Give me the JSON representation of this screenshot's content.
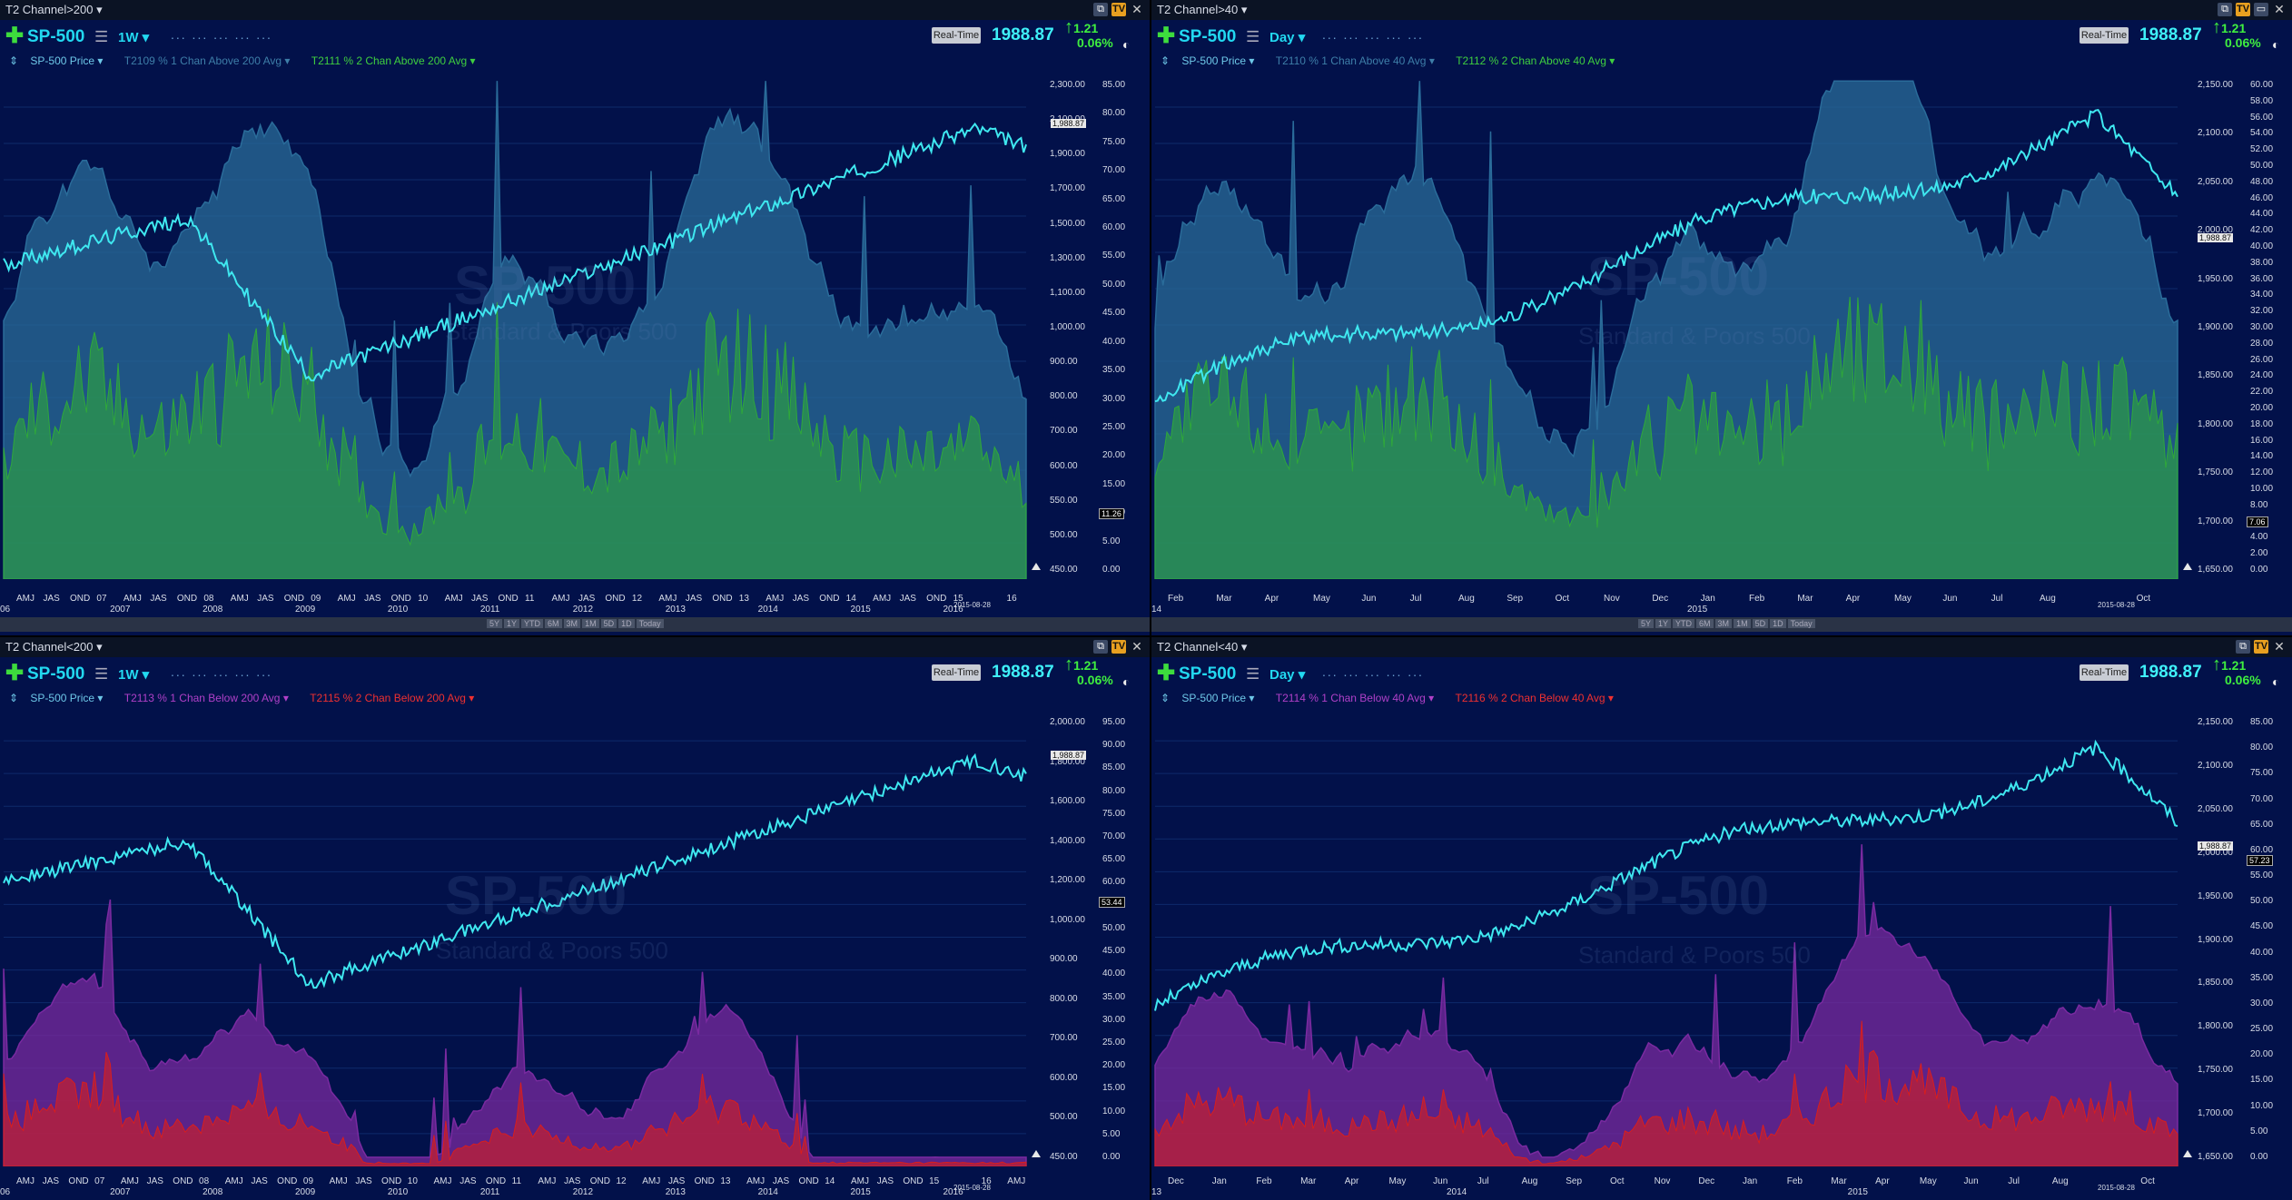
{
  "panes": [
    {
      "title": "T2 Channel>200",
      "symbol": "SP-500",
      "interval": "1W",
      "realtime": "Real-Time",
      "price": "1988.87",
      "change": "1.21",
      "change_pct": "0.06%",
      "legend": [
        {
          "label": "SP-500 Price",
          "color": "#6ec8e8"
        },
        {
          "label": "T2109 % 1 Chan Above 200 Avg",
          "color": "#3e7ea8"
        },
        {
          "label": "T2111 % 2 Chan Above 200 Avg",
          "color": "#3fcf3f"
        }
      ],
      "price_ticks": [
        "2,300.00",
        "2,100.00",
        "1,900.00",
        "1,700.00",
        "1,500.00",
        "1,300.00",
        "1,100.00",
        "1,000.00",
        "900.00",
        "800.00",
        "700.00",
        "600.00",
        "550.00",
        "500.00",
        "450.00"
      ],
      "pct_ticks": [
        "85.00",
        "80.00",
        "75.00",
        "70.00",
        "65.00",
        "60.00",
        "55.00",
        "50.00",
        "45.00",
        "40.00",
        "35.00",
        "30.00",
        "25.00",
        "20.00",
        "15.00",
        "10.00",
        "5.00",
        "0.00"
      ],
      "last_price": "1,988.87",
      "last_value": "11.26",
      "x_months": [
        "AMJ",
        "JAS",
        "OND",
        "07",
        "AMJ",
        "JAS",
        "OND",
        "08",
        "AMJ",
        "JAS",
        "OND",
        "09",
        "AMJ",
        "JAS",
        "OND",
        "10",
        "AMJ",
        "JAS",
        "OND",
        "11",
        "AMJ",
        "JAS",
        "OND",
        "12",
        "AMJ",
        "JAS",
        "OND",
        "13",
        "AMJ",
        "JAS",
        "OND",
        "14",
        "AMJ",
        "JAS",
        "OND",
        "15",
        "",
        "16"
      ],
      "x_years": [
        "2007",
        "2008",
        "2009",
        "2010",
        "2011",
        "2012",
        "2013",
        "2014",
        "2015",
        "2016"
      ],
      "x_start": "06",
      "date_label": "2015-08-28",
      "zoom_buttons": [
        "5Y",
        "1Y",
        "YTD",
        "6M",
        "3M",
        "1M",
        "5D",
        "1D",
        "Today"
      ]
    },
    {
      "title": "T2 Channel>40",
      "symbol": "SP-500",
      "interval": "Day",
      "realtime": "Real-Time",
      "price": "1988.87",
      "change": "1.21",
      "change_pct": "0.06%",
      "legend": [
        {
          "label": "SP-500 Price",
          "color": "#6ec8e8"
        },
        {
          "label": "T2110 % 1 Chan Above 40 Avg",
          "color": "#3e7ea8"
        },
        {
          "label": "T2112 % 2 Chan Above 40 Avg",
          "color": "#3fcf3f"
        }
      ],
      "price_ticks": [
        "2,150.00",
        "2,100.00",
        "2,050.00",
        "2,000.00",
        "1,950.00",
        "1,900.00",
        "1,850.00",
        "1,800.00",
        "1,750.00",
        "1,700.00",
        "1,650.00"
      ],
      "pct_ticks": [
        "60.00",
        "58.00",
        "56.00",
        "54.00",
        "52.00",
        "50.00",
        "48.00",
        "46.00",
        "44.00",
        "42.00",
        "40.00",
        "38.00",
        "36.00",
        "34.00",
        "32.00",
        "30.00",
        "28.00",
        "26.00",
        "24.00",
        "22.00",
        "20.00",
        "18.00",
        "16.00",
        "14.00",
        "12.00",
        "10.00",
        "8.00",
        "6.00",
        "4.00",
        "2.00",
        "0.00"
      ],
      "last_price": "1,988.87",
      "last_value": "7.06",
      "x_months": [
        "Feb",
        "Mar",
        "Apr",
        "May",
        "Jun",
        "Jul",
        "Aug",
        "Sep",
        "Oct",
        "Nov",
        "Dec",
        "Jan",
        "Feb",
        "Mar",
        "Apr",
        "May",
        "Jun",
        "Jul",
        "Aug",
        "",
        "Oct"
      ],
      "x_years": [
        "2015"
      ],
      "x_start": "14",
      "date_label": "2015-08-28",
      "zoom_buttons": [
        "5Y",
        "1Y",
        "YTD",
        "6M",
        "3M",
        "1M",
        "5D",
        "1D",
        "Today"
      ]
    },
    {
      "title": "T2 Channel<200",
      "symbol": "SP-500",
      "interval": "1W",
      "realtime": "Real-Time",
      "price": "1988.87",
      "change": "1.21",
      "change_pct": "0.06%",
      "legend": [
        {
          "label": "SP-500 Price",
          "color": "#6ec8e8"
        },
        {
          "label": "T2113 % 1 Chan Below 200 Avg",
          "color": "#b040c8"
        },
        {
          "label": "T2115 % 2 Chan Below 200 Avg",
          "color": "#f03030"
        }
      ],
      "price_ticks": [
        "2,000.00",
        "1,800.00",
        "1,600.00",
        "1,400.00",
        "1,200.00",
        "1,000.00",
        "900.00",
        "800.00",
        "700.00",
        "600.00",
        "500.00",
        "450.00"
      ],
      "pct_ticks": [
        "95.00",
        "90.00",
        "85.00",
        "80.00",
        "75.00",
        "70.00",
        "65.00",
        "60.00",
        "55.00",
        "50.00",
        "45.00",
        "40.00",
        "35.00",
        "30.00",
        "25.00",
        "20.00",
        "15.00",
        "10.00",
        "5.00",
        "0.00"
      ],
      "last_price": "1,988.87",
      "last_value": "53.44",
      "x_months": [
        "AMJ",
        "JAS",
        "OND",
        "07",
        "AMJ",
        "JAS",
        "OND",
        "08",
        "AMJ",
        "JAS",
        "OND",
        "09",
        "AMJ",
        "JAS",
        "OND",
        "10",
        "AMJ",
        "JAS",
        "OND",
        "11",
        "AMJ",
        "JAS",
        "OND",
        "12",
        "AMJ",
        "JAS",
        "OND",
        "13",
        "AMJ",
        "JAS",
        "OND",
        "14",
        "AMJ",
        "JAS",
        "OND",
        "15",
        "",
        "16",
        "AMJ"
      ],
      "x_years": [
        "2007",
        "2008",
        "2009",
        "2010",
        "2011",
        "2012",
        "2013",
        "2014",
        "2015",
        "2016"
      ],
      "x_start": "06",
      "date_label": "2015-08-28"
    },
    {
      "title": "T2 Channel<40",
      "symbol": "SP-500",
      "interval": "Day",
      "realtime": "Real-Time",
      "price": "1988.87",
      "change": "1.21",
      "change_pct": "0.06%",
      "legend": [
        {
          "label": "SP-500 Price",
          "color": "#6ec8e8"
        },
        {
          "label": "T2114 % 1 Chan Below 40 Avg",
          "color": "#b040c8"
        },
        {
          "label": "T2116 % 2 Chan Below 40 Avg",
          "color": "#f03030"
        }
      ],
      "price_ticks": [
        "2,150.00",
        "2,100.00",
        "2,050.00",
        "2,000.00",
        "1,950.00",
        "1,900.00",
        "1,850.00",
        "1,800.00",
        "1,750.00",
        "1,700.00",
        "1,650.00"
      ],
      "pct_ticks": [
        "85.00",
        "80.00",
        "75.00",
        "70.00",
        "65.00",
        "60.00",
        "55.00",
        "50.00",
        "45.00",
        "40.00",
        "35.00",
        "30.00",
        "25.00",
        "20.00",
        "15.00",
        "10.00",
        "5.00",
        "0.00"
      ],
      "last_price": "1,988.87",
      "last_value": "57.23",
      "x_months": [
        "Dec",
        "Jan",
        "Feb",
        "Mar",
        "Apr",
        "May",
        "Jun",
        "Jul",
        "Aug",
        "Sep",
        "Oct",
        "Nov",
        "Dec",
        "Jan",
        "Feb",
        "Mar",
        "Apr",
        "May",
        "Jun",
        "Jul",
        "Aug",
        "",
        "Oct"
      ],
      "x_years": [
        "2014",
        "2015"
      ],
      "x_start": "13",
      "date_label": "2015-08-28"
    }
  ],
  "watermark": {
    "symbol": "SP-500",
    "name": "Standard & Poors 500"
  },
  "colors": {
    "background": "#02114a",
    "price_line": "#3fe8f0",
    "above_fill": "#2a6c9a",
    "above2_fill": "#2fa83a",
    "below_fill": "#8a2aa8",
    "below2_fill": "#e02020"
  }
}
